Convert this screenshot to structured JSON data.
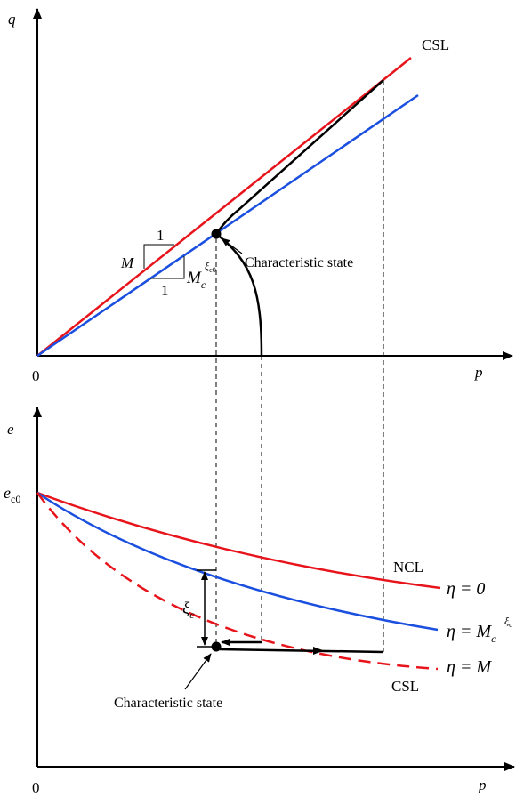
{
  "top": {
    "y_axis_label": "q",
    "x_axis_label": "p",
    "origin_label": "0",
    "csl_label": "CSL",
    "slope_M_label": "M",
    "slope_one_top": "1",
    "slope_one_bottom": "1",
    "slope_Mc_main": "M",
    "slope_Mc_sub": "c",
    "slope_Mc_sup": "ξ",
    "slope_Mc_sup_sub": "c0",
    "characteristic_label": "Characteristic state"
  },
  "bottom": {
    "y_axis_label": "e",
    "x_axis_label": "p",
    "origin_label": "0",
    "ec0_main": "e",
    "ec0_sub": "c0",
    "ncl_label": "NCL",
    "csl_label": "CSL",
    "xi_label": "ξ",
    "xi_sub": "c",
    "eta_zero": "η = 0",
    "eta_mc_main": "η = M",
    "eta_mc_sub": "c",
    "eta_mc_sup": "ξ",
    "eta_mc_sup_sub": "c",
    "eta_M": "η = M",
    "characteristic_label": "Characteristic state"
  },
  "colors": {
    "csl_red": "#e8141c",
    "blue": "#1a4fe0",
    "black": "#000000"
  }
}
